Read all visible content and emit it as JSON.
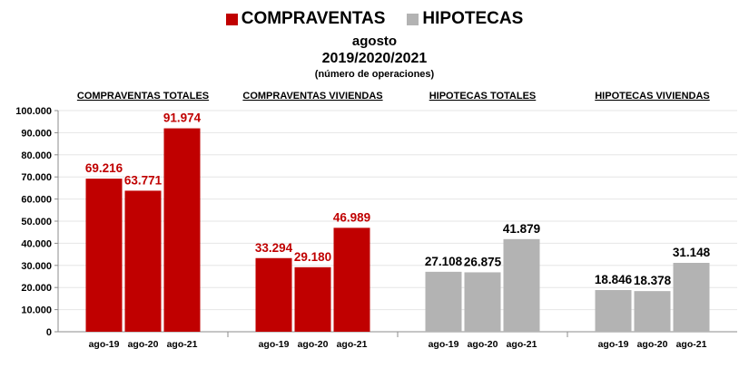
{
  "legend": [
    {
      "label": "COMPRAVENTAS",
      "color": "#c00000"
    },
    {
      "label": "HIPOTECAS",
      "color": "#b3b3b3"
    }
  ],
  "title": {
    "line1": "agosto",
    "line2": "2019/2020/2021",
    "line3": "(número de operaciones)"
  },
  "chart_data": {
    "type": "bar",
    "ylim": [
      0,
      100000
    ],
    "y_ticks": [
      "0",
      "10.000",
      "20.000",
      "30.000",
      "40.000",
      "50.000",
      "60.000",
      "70.000",
      "80.000",
      "90.000",
      "100.000"
    ],
    "categories": [
      "ago-19",
      "ago-20",
      "ago-21"
    ],
    "grid": true,
    "groups": [
      {
        "title": "COMPRAVENTAS TOTALES",
        "color": "#c00000",
        "label_color": "#c00000",
        "values": [
          69216,
          63771,
          91974
        ],
        "labels": [
          "69.216",
          "63.771",
          "91.974"
        ]
      },
      {
        "title": "COMPRAVENTAS VIVIENDAS",
        "color": "#c00000",
        "label_color": "#c00000",
        "values": [
          33294,
          29180,
          46989
        ],
        "labels": [
          "33.294",
          "29.180",
          "46.989"
        ]
      },
      {
        "title": "HIPOTECAS TOTALES",
        "color": "#b3b3b3",
        "label_color": "#000000",
        "values": [
          27108,
          26875,
          41879
        ],
        "labels": [
          "27.108",
          "26.875",
          "41.879"
        ]
      },
      {
        "title": "HIPOTECAS VIVIENDAS",
        "color": "#b3b3b3",
        "label_color": "#000000",
        "values": [
          18846,
          18378,
          31148
        ],
        "labels": [
          "18.846",
          "18.378",
          "31.148"
        ]
      }
    ]
  }
}
